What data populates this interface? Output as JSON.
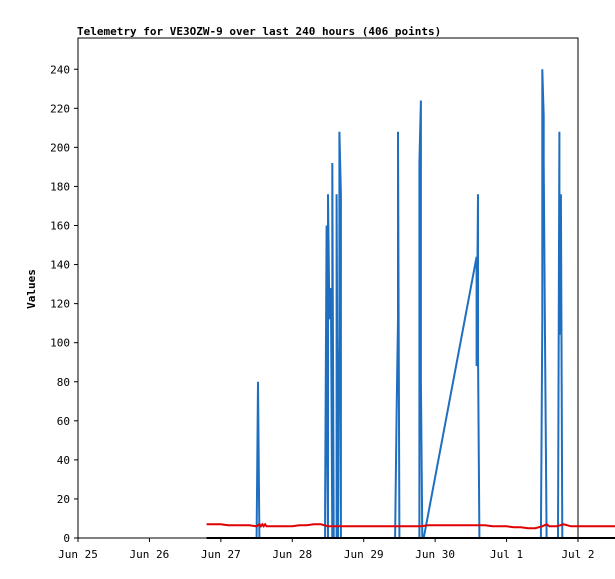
{
  "chart_data": {
    "type": "line",
    "title": "Telemetry for VE3OZW-9 over last 240 hours (406 points)",
    "xlabel": "",
    "ylabel": "Values",
    "x_tick_labels": [
      "Jun 25",
      "Jun 26",
      "Jun 27",
      "Jun 28",
      "Jun 29",
      "Jun 30",
      "Jul 1",
      "Jul 2"
    ],
    "x_range_days": [
      0,
      7
    ],
    "ylim": [
      0,
      256
    ],
    "y_ticks": [
      0,
      20,
      40,
      60,
      80,
      100,
      120,
      140,
      160,
      180,
      200,
      220,
      240
    ],
    "grid": false,
    "series": [
      {
        "color": "#1f6fc0",
        "x": [
          1.82,
          1.84,
          1.86,
          1.86,
          1.88,
          1.9,
          1.92,
          1.96,
          1.98,
          2.0,
          2.04,
          2.04,
          2.06,
          2.08,
          2.1,
          2.16,
          2.2,
          2.24,
          2.3,
          2.36,
          2.42,
          2.48,
          2.5,
          2.52,
          2.54,
          2.56,
          2.58,
          2.6,
          2.6,
          2.64,
          2.68,
          2.72,
          2.76,
          2.8,
          2.86,
          2.92,
          2.98,
          3.04,
          3.1,
          3.16,
          3.22,
          3.28,
          3.34,
          3.4,
          3.46,
          3.46,
          3.48,
          3.48,
          3.5,
          3.5,
          3.52,
          3.54,
          3.56,
          3.56,
          3.58,
          3.6,
          3.6,
          3.62,
          3.62,
          3.64,
          3.66,
          3.66,
          3.68,
          3.68,
          3.7,
          3.7,
          3.72,
          3.72,
          3.74,
          3.76,
          3.78,
          3.78,
          3.8,
          3.8,
          3.82,
          3.84,
          3.9,
          3.96,
          4.02,
          4.08,
          4.14,
          4.2,
          4.26,
          4.32,
          4.38,
          4.44,
          4.46,
          4.48,
          4.48,
          4.5,
          4.5,
          4.52,
          4.54,
          4.6,
          4.66,
          4.72,
          4.78,
          4.78,
          4.8,
          4.8,
          4.82,
          4.82,
          4.84,
          5.58,
          5.58,
          5.6,
          5.6,
          5.62,
          5.62,
          5.64,
          5.66,
          5.72,
          5.8,
          5.9,
          6.0,
          6.1,
          6.2,
          6.3,
          6.4,
          6.44,
          6.46,
          6.48,
          6.5,
          6.5,
          6.52,
          6.52,
          6.54,
          6.56,
          6.56,
          6.58,
          6.62,
          6.64,
          6.66,
          6.68,
          6.7,
          6.72,
          6.72,
          6.74,
          6.74,
          6.76,
          6.76,
          6.78,
          6.78,
          6.8,
          6.84,
          6.9,
          6.96,
          7.02,
          7.08,
          7.14,
          7.2,
          7.26,
          7.32,
          7.38,
          7.44,
          7.5,
          7.56,
          7.62,
          7.66,
          7.68,
          7.68
        ],
        "y": [
          0,
          0,
          0,
          0,
          0,
          0,
          0,
          0,
          0,
          0,
          0,
          0,
          0,
          0,
          0,
          0,
          0,
          0,
          0,
          0,
          0,
          0,
          0,
          80,
          0,
          0,
          0,
          0,
          0,
          0,
          0,
          0,
          0,
          0,
          0,
          0,
          0,
          0,
          0,
          0,
          0,
          0,
          0,
          0,
          0,
          16,
          160,
          80,
          0,
          176,
          112,
          128,
          0,
          192,
          0,
          0,
          0,
          0,
          176,
          0,
          104,
          208,
          176,
          0,
          0,
          0,
          0,
          0,
          0,
          0,
          0,
          0,
          0,
          0,
          0,
          0,
          0,
          0,
          0,
          0,
          0,
          0,
          0,
          0,
          0,
          0,
          64,
          112,
          208,
          0,
          0,
          0,
          0,
          0,
          0,
          0,
          0,
          192,
          224,
          80,
          0,
          0,
          0,
          144,
          88,
          176,
          96,
          0,
          0,
          0,
          0,
          0,
          0,
          0,
          0,
          0,
          0,
          0,
          0,
          0,
          0,
          0,
          112,
          240,
          216,
          192,
          96,
          0,
          0,
          0,
          0,
          0,
          0,
          0,
          0,
          0,
          0,
          208,
          104,
          176,
          176,
          0,
          0,
          0,
          0,
          0,
          0,
          0,
          0,
          0,
          0,
          0,
          0,
          0,
          0,
          0,
          0,
          0,
          0,
          16,
          0
        ]
      },
      {
        "color": "#e00000",
        "x": [
          1.8,
          1.9,
          2.0,
          2.1,
          2.2,
          2.3,
          2.4,
          2.5,
          2.54,
          2.56,
          2.58,
          2.6,
          2.62,
          2.64,
          2.7,
          2.8,
          2.9,
          3.0,
          3.1,
          3.2,
          3.3,
          3.4,
          3.5,
          3.6,
          3.7,
          3.8,
          3.9,
          4.0,
          4.1,
          4.2,
          4.3,
          4.4,
          4.5,
          4.6,
          4.7,
          4.8,
          4.9,
          5.0,
          5.1,
          5.2,
          5.3,
          5.4,
          5.5,
          5.6,
          5.7,
          5.8,
          5.9,
          6.0,
          6.1,
          6.2,
          6.3,
          6.4,
          6.5,
          6.56,
          6.6,
          6.7,
          6.8,
          6.9,
          7.0,
          7.1,
          7.2,
          7.3,
          7.4,
          7.5,
          7.6,
          7.66
        ],
        "y": [
          7,
          7,
          7,
          6.5,
          6.5,
          6.5,
          6.5,
          6,
          7,
          6,
          7,
          6,
          7,
          6,
          6,
          6,
          6,
          6,
          6.5,
          6.5,
          7,
          7,
          6,
          6,
          6,
          6,
          6,
          6,
          6,
          6,
          6,
          6,
          6,
          6,
          6,
          6,
          6.5,
          6.5,
          6.5,
          6.5,
          6.5,
          6.5,
          6.5,
          6.5,
          6.5,
          6,
          6,
          6,
          5.5,
          5.5,
          5,
          5,
          6,
          7,
          6,
          6,
          7,
          6,
          6,
          6,
          6,
          6,
          6,
          6,
          6,
          6
        ]
      },
      {
        "color": "#000000",
        "x": [
          1.8,
          7.66
        ],
        "y": [
          0,
          0
        ]
      }
    ]
  }
}
